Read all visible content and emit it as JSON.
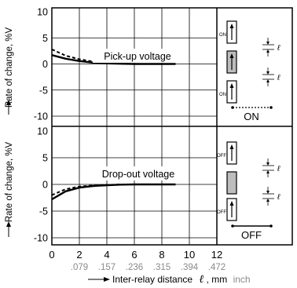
{
  "chart_data": [
    {
      "type": "line",
      "inset_label": "Pick-up voltage",
      "ylabel": "Rate of change, %V",
      "ylim": [
        -10,
        10
      ],
      "yticks": [
        "10",
        "5",
        "0",
        "-5",
        "-10"
      ],
      "xlim": [
        0,
        12
      ],
      "series": [
        {
          "style": "solid",
          "x": [
            0,
            1,
            2,
            3,
            4,
            5,
            6,
            7,
            8,
            9
          ],
          "y": [
            1.7,
            1.0,
            0.55,
            0.25,
            0.1,
            0.05,
            0,
            0,
            0,
            0
          ]
        },
        {
          "style": "dashed",
          "x": [
            0,
            1,
            2,
            3,
            4,
            5,
            6,
            7,
            8,
            9
          ],
          "y": [
            2.8,
            1.6,
            0.9,
            0.45,
            0.2,
            0.05,
            0,
            0,
            0,
            0
          ]
        }
      ],
      "grid": true
    },
    {
      "type": "line",
      "inset_label": "Drop-out voltage",
      "ylabel": "Rate of change, %V",
      "ylim": [
        -10,
        10
      ],
      "yticks": [
        "10",
        "5",
        "0",
        "-5",
        "-10"
      ],
      "xlim": [
        0,
        12
      ],
      "series": [
        {
          "style": "solid",
          "x": [
            0,
            1,
            2,
            3,
            4,
            5,
            6,
            7,
            8,
            9
          ],
          "y": [
            -2.8,
            -1.3,
            -0.6,
            -0.3,
            -0.15,
            -0.05,
            0,
            0,
            0,
            0
          ]
        },
        {
          "style": "dashed",
          "x": [
            0,
            1,
            2,
            3,
            4,
            5,
            6,
            7,
            8,
            9
          ],
          "y": [
            -2.0,
            -0.9,
            -0.4,
            -0.2,
            -0.1,
            0,
            0,
            0,
            0,
            0
          ]
        }
      ],
      "grid": true
    }
  ],
  "x_axis": {
    "ticks_mm": [
      "0",
      "2",
      "4",
      "6",
      "8",
      "10",
      "12"
    ],
    "ticks_inch": [
      ".079",
      ".157",
      ".236",
      ".315",
      ".394",
      ".472"
    ],
    "label": "Inter-relay distance",
    "label_symbol": "ℓ",
    "label_unit": ", mm",
    "label_unit_alt": "inch"
  },
  "diagram": {
    "top": {
      "tag": "ON",
      "caption": "ON",
      "ell": "ℓ"
    },
    "bottom": {
      "tag": "OFF",
      "caption": "OFF",
      "ell": "ℓ"
    }
  }
}
